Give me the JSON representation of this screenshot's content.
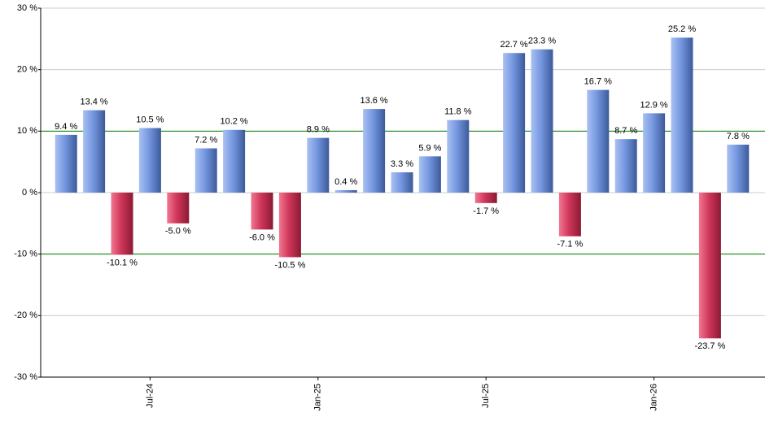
{
  "chart_data": {
    "type": "bar",
    "categories": [
      null,
      null,
      null,
      "Jul-24",
      null,
      null,
      null,
      null,
      null,
      "Jan-25",
      null,
      null,
      null,
      null,
      null,
      "Jul-25",
      null,
      null,
      null,
      null,
      null,
      "Jan-26",
      null,
      null,
      null
    ],
    "values": [
      9.4,
      13.4,
      -10.1,
      10.5,
      -5.0,
      7.2,
      10.2,
      -6.0,
      -10.5,
      8.9,
      0.4,
      13.6,
      3.3,
      5.9,
      11.8,
      -1.7,
      22.7,
      23.3,
      -7.1,
      16.7,
      8.7,
      12.9,
      25.2,
      -23.7,
      7.8
    ],
    "value_labels": [
      "9.4 %",
      "13.4 %",
      "-10.1 %",
      "10.5 %",
      "-5.0 %",
      "7.2 %",
      "10.2 %",
      "-6.0 %",
      "-10.5 %",
      "8.9 %",
      "0.4 %",
      "13.6 %",
      "3.3 %",
      "5.9 %",
      "11.8 %",
      "-1.7 %",
      "22.7 %",
      "23.3 %",
      "-7.1 %",
      "16.7 %",
      "8.7 %",
      "12.9 %",
      "25.2 %",
      "-23.7 %",
      "7.8 %"
    ],
    "positive_color": "#6f8fd8",
    "negative_color": "#c8304f",
    "ylim": [
      -30,
      30
    ],
    "yticks": [
      {
        "value": -30,
        "label": "-30 %"
      },
      {
        "value": -20,
        "label": "-20 %"
      },
      {
        "value": -10,
        "label": "-10 %"
      },
      {
        "value": 0,
        "label": "0 %"
      },
      {
        "value": 10,
        "label": "10 %"
      },
      {
        "value": 20,
        "label": "20 %"
      },
      {
        "value": 30,
        "label": "30 %"
      }
    ],
    "grid": true,
    "highlight_lines": {
      "values": [
        -10,
        10
      ],
      "color": "#008000"
    }
  }
}
